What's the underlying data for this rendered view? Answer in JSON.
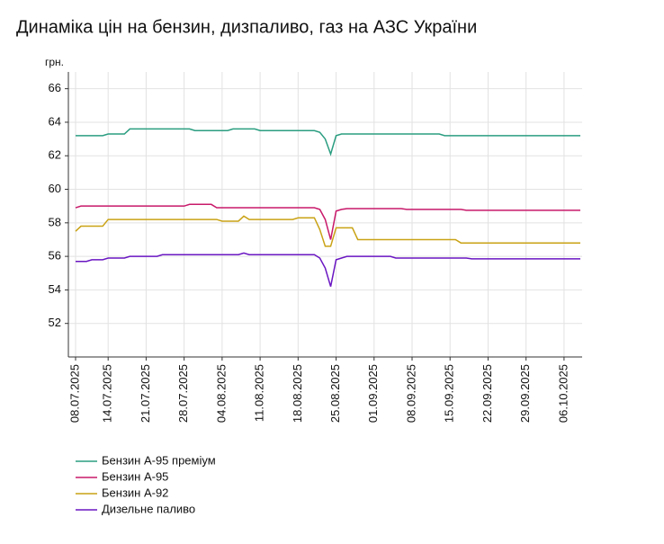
{
  "chart_data": {
    "type": "line",
    "title": "Динаміка цін на бензин, дизпаливо, газ на АЗС України",
    "y_label": "грн.",
    "categories": [
      "08.07.2025",
      null,
      null,
      null,
      null,
      null,
      "14.07.2025",
      null,
      null,
      null,
      null,
      null,
      null,
      "21.07.2025",
      null,
      null,
      null,
      null,
      null,
      null,
      "28.07.2025",
      null,
      null,
      null,
      null,
      null,
      null,
      "04.08.2025",
      null,
      null,
      null,
      null,
      null,
      null,
      "11.08.2025",
      null,
      null,
      null,
      null,
      null,
      null,
      "18.08.2025",
      null,
      null,
      null,
      null,
      null,
      null,
      "25.08.2025",
      null,
      null,
      null,
      null,
      null,
      null,
      "01.09.2025",
      null,
      null,
      null,
      null,
      null,
      null,
      "08.09.2025",
      null,
      null,
      null,
      null,
      null,
      null,
      "15.09.2025",
      null,
      null,
      null,
      null,
      null,
      null,
      "22.09.2025",
      null,
      null,
      null,
      null,
      null,
      null,
      "29.09.2025",
      null,
      null,
      null,
      null,
      null,
      null,
      "06.10.2025",
      null,
      null,
      null
    ],
    "series": [
      {
        "name": "Бензин А-95 преміум",
        "color": "#2a9d80",
        "values": [
          63.2,
          63.2,
          63.2,
          63.2,
          63.2,
          63.2,
          63.3,
          63.3,
          63.3,
          63.3,
          63.6,
          63.6,
          63.6,
          63.6,
          63.6,
          63.6,
          63.6,
          63.6,
          63.6,
          63.6,
          63.6,
          63.6,
          63.5,
          63.5,
          63.5,
          63.5,
          63.5,
          63.5,
          63.5,
          63.6,
          63.6,
          63.6,
          63.6,
          63.6,
          63.5,
          63.5,
          63.5,
          63.5,
          63.5,
          63.5,
          63.5,
          63.5,
          63.5,
          63.5,
          63.5,
          63.4,
          63.0,
          62.1,
          63.2,
          63.3,
          63.3,
          63.3,
          63.3,
          63.3,
          63.3,
          63.3,
          63.3,
          63.3,
          63.3,
          63.3,
          63.3,
          63.3,
          63.3,
          63.3,
          63.3,
          63.3,
          63.3,
          63.3,
          63.2,
          63.2,
          63.2,
          63.2,
          63.2,
          63.2,
          63.2,
          63.2,
          63.2,
          63.2,
          63.2,
          63.2,
          63.2,
          63.2,
          63.2,
          63.2,
          63.2,
          63.2,
          63.2,
          63.2,
          63.2,
          63.2,
          63.2,
          63.2,
          63.2,
          63.2
        ]
      },
      {
        "name": "Бензин А-95",
        "color": "#c8196a",
        "values": [
          58.9,
          59.0,
          59.0,
          59.0,
          59.0,
          59.0,
          59.0,
          59.0,
          59.0,
          59.0,
          59.0,
          59.0,
          59.0,
          59.0,
          59.0,
          59.0,
          59.0,
          59.0,
          59.0,
          59.0,
          59.0,
          59.1,
          59.1,
          59.1,
          59.1,
          59.1,
          58.9,
          58.9,
          58.9,
          58.9,
          58.9,
          58.9,
          58.9,
          58.9,
          58.9,
          58.9,
          58.9,
          58.9,
          58.9,
          58.9,
          58.9,
          58.9,
          58.9,
          58.9,
          58.9,
          58.8,
          58.2,
          57.0,
          58.7,
          58.8,
          58.85,
          58.85,
          58.85,
          58.85,
          58.85,
          58.85,
          58.85,
          58.85,
          58.85,
          58.85,
          58.85,
          58.8,
          58.8,
          58.8,
          58.8,
          58.8,
          58.8,
          58.8,
          58.8,
          58.8,
          58.8,
          58.8,
          58.75,
          58.75,
          58.75,
          58.75,
          58.75,
          58.75,
          58.75,
          58.75,
          58.75,
          58.75,
          58.75,
          58.75,
          58.75,
          58.75,
          58.75,
          58.75,
          58.75,
          58.75,
          58.75,
          58.75,
          58.75,
          58.75
        ]
      },
      {
        "name": "Бензин А-92",
        "color": "#c9a214",
        "values": [
          57.5,
          57.8,
          57.8,
          57.8,
          57.8,
          57.8,
          58.2,
          58.2,
          58.2,
          58.2,
          58.2,
          58.2,
          58.2,
          58.2,
          58.2,
          58.2,
          58.2,
          58.2,
          58.2,
          58.2,
          58.2,
          58.2,
          58.2,
          58.2,
          58.2,
          58.2,
          58.2,
          58.1,
          58.1,
          58.1,
          58.1,
          58.4,
          58.2,
          58.2,
          58.2,
          58.2,
          58.2,
          58.2,
          58.2,
          58.2,
          58.2,
          58.3,
          58.3,
          58.3,
          58.3,
          57.6,
          56.6,
          56.6,
          57.7,
          57.7,
          57.7,
          57.7,
          57.0,
          57.0,
          57.0,
          57.0,
          57.0,
          57.0,
          57.0,
          57.0,
          57.0,
          57.0,
          57.0,
          57.0,
          57.0,
          57.0,
          57.0,
          57.0,
          57.0,
          57.0,
          57.0,
          56.8,
          56.8,
          56.8,
          56.8,
          56.8,
          56.8,
          56.8,
          56.8,
          56.8,
          56.8,
          56.8,
          56.8,
          56.8,
          56.8,
          56.8,
          56.8,
          56.8,
          56.8,
          56.8,
          56.8,
          56.8,
          56.8,
          56.8
        ]
      },
      {
        "name": "Дизельне паливо",
        "color": "#6a16c2",
        "values": [
          55.7,
          55.7,
          55.7,
          55.8,
          55.8,
          55.8,
          55.9,
          55.9,
          55.9,
          55.9,
          56.0,
          56.0,
          56.0,
          56.0,
          56.0,
          56.0,
          56.1,
          56.1,
          56.1,
          56.1,
          56.1,
          56.1,
          56.1,
          56.1,
          56.1,
          56.1,
          56.1,
          56.1,
          56.1,
          56.1,
          56.1,
          56.2,
          56.1,
          56.1,
          56.1,
          56.1,
          56.1,
          56.1,
          56.1,
          56.1,
          56.1,
          56.1,
          56.1,
          56.1,
          56.1,
          55.9,
          55.3,
          54.2,
          55.8,
          55.9,
          56.0,
          56.0,
          56.0,
          56.0,
          56.0,
          56.0,
          56.0,
          56.0,
          56.0,
          55.9,
          55.9,
          55.9,
          55.9,
          55.9,
          55.9,
          55.9,
          55.9,
          55.9,
          55.9,
          55.9,
          55.9,
          55.9,
          55.9,
          55.85,
          55.85,
          55.85,
          55.85,
          55.85,
          55.85,
          55.85,
          55.85,
          55.85,
          55.85,
          55.85,
          55.85,
          55.85,
          55.85,
          55.85,
          55.85,
          55.85,
          55.85,
          55.85,
          55.85,
          55.85
        ]
      }
    ],
    "ylim": [
      50,
      67
    ],
    "yticks": [
      52,
      54,
      56,
      58,
      60,
      62,
      64,
      66
    ],
    "grid": true
  }
}
